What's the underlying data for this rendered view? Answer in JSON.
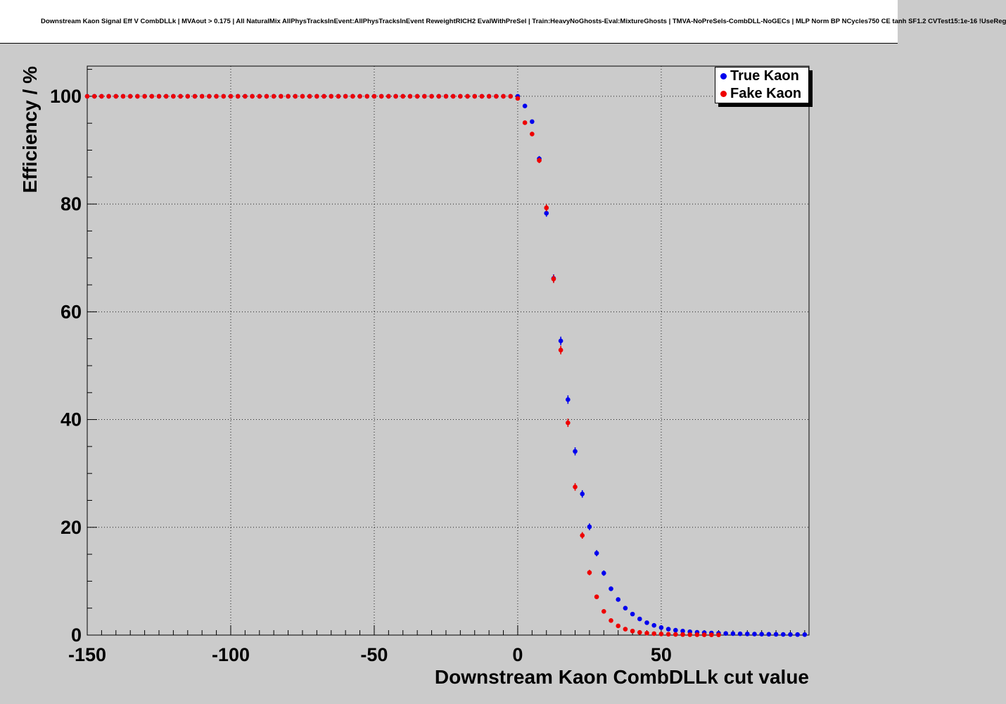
{
  "title": "Downstream Kaon Signal Eff V CombDLLk | MVAout > 0.175 | All NaturalMix AllPhysTracksInEvent:AllPhysTracksInEvent ReweightRICH2 EvalWithPreSel | Train:HeavyNoGhosts-Eval:MixtureGhosts | TMVA-NoPreSels-CombDLL-NoGECs | MLP Norm BP NCycles750 CE tanh SF1.2 CVTest15:1e-16 !UseReg",
  "colors": {
    "canvas_bg": "#cbcbcb",
    "plot_bg": "#ffffff",
    "true_kaon": "#0000ee",
    "fake_kaon": "#ee0000"
  },
  "chart_data": {
    "type": "scatter",
    "title": "Downstream Kaon Signal Eff V CombDLLk",
    "xlabel": "Downstream Kaon CombDLLk cut value",
    "ylabel": "Efficiency / %",
    "xlim": [
      -150,
      101.5
    ],
    "ylim": [
      0,
      105.6
    ],
    "xticks": [
      -150,
      -100,
      -50,
      0,
      50
    ],
    "xtick_labels": [
      "-150",
      "-100",
      "-50",
      "0",
      "50"
    ],
    "yticks": [
      0,
      20,
      40,
      60,
      80,
      100
    ],
    "ytick_labels": [
      "0",
      "20",
      "40",
      "60",
      "80",
      "100"
    ],
    "grid": true,
    "error_bar_sample_n": 4000,
    "legend": {
      "position": "top-right",
      "entries": [
        {
          "label": "True Kaon",
          "color": "#0000ee"
        },
        {
          "label": "Fake Kaon",
          "color": "#ee0000"
        }
      ]
    },
    "series": [
      {
        "name": "True Kaon",
        "color": "#0000ee",
        "x": [
          -150,
          -147.5,
          -145,
          -142.5,
          -140,
          -137.5,
          -135,
          -132.5,
          -130,
          -127.5,
          -125,
          -122.5,
          -120,
          -117.5,
          -115,
          -112.5,
          -110,
          -107.5,
          -105,
          -102.5,
          -100,
          -97.5,
          -95,
          -92.5,
          -90,
          -87.5,
          -85,
          -82.5,
          -80,
          -77.5,
          -75,
          -72.5,
          -70,
          -67.5,
          -65,
          -62.5,
          -60,
          -57.5,
          -55,
          -52.5,
          -50,
          -47.5,
          -45,
          -42.5,
          -40,
          -37.5,
          -35,
          -32.5,
          -30,
          -27.5,
          -25,
          -22.5,
          -20,
          -17.5,
          -15,
          -12.5,
          -10,
          -7.5,
          -5,
          -2.5,
          0,
          2.5,
          5,
          7.5,
          10,
          12.5,
          15,
          17.5,
          20,
          22.5,
          25,
          27.5,
          30,
          32.5,
          35,
          37.5,
          40,
          42.5,
          45,
          47.5,
          50,
          52.5,
          55,
          57.5,
          60,
          62.5,
          65,
          67.5,
          70,
          72.5,
          75,
          77.5,
          80,
          82.5,
          85,
          87.5,
          90,
          92.5,
          95,
          97.5,
          100
        ],
        "y": [
          100,
          100,
          100,
          100,
          100,
          100,
          100,
          100,
          100,
          100,
          100,
          100,
          100,
          100,
          100,
          100,
          100,
          100,
          100,
          100,
          100,
          100,
          100,
          100,
          100,
          100,
          100,
          100,
          100,
          100,
          100,
          100,
          100,
          100,
          100,
          100,
          100,
          100,
          100,
          100,
          100,
          100,
          100,
          100,
          100,
          100,
          100,
          100,
          100,
          100,
          100,
          100,
          100,
          100,
          100,
          100,
          100,
          100,
          100,
          100,
          100,
          98.2,
          95.3,
          88.4,
          78.3,
          66.2,
          54.6,
          43.7,
          34.1,
          26.2,
          20.1,
          15.2,
          11.5,
          8.6,
          6.6,
          5.0,
          3.9,
          3.0,
          2.3,
          1.8,
          1.4,
          1.1,
          0.9,
          0.75,
          0.62,
          0.52,
          0.45,
          0.39,
          0.34,
          0.3,
          0.27,
          0.24,
          0.21,
          0.19,
          0.17,
          0.15,
          0.14,
          0.12,
          0.11,
          0.1,
          0.09
        ]
      },
      {
        "name": "Fake Kaon",
        "color": "#ee0000",
        "x": [
          -150,
          -147.5,
          -145,
          -142.5,
          -140,
          -137.5,
          -135,
          -132.5,
          -130,
          -127.5,
          -125,
          -122.5,
          -120,
          -117.5,
          -115,
          -112.5,
          -110,
          -107.5,
          -105,
          -102.5,
          -100,
          -97.5,
          -95,
          -92.5,
          -90,
          -87.5,
          -85,
          -82.5,
          -80,
          -77.5,
          -75,
          -72.5,
          -70,
          -67.5,
          -65,
          -62.5,
          -60,
          -57.5,
          -55,
          -52.5,
          -50,
          -47.5,
          -45,
          -42.5,
          -40,
          -37.5,
          -35,
          -32.5,
          -30,
          -27.5,
          -25,
          -22.5,
          -20,
          -17.5,
          -15,
          -12.5,
          -10,
          -7.5,
          -5,
          -2.5,
          0,
          2.5,
          5,
          7.5,
          10,
          12.5,
          15,
          17.5,
          20,
          22.5,
          25,
          27.5,
          30,
          32.5,
          35,
          37.5,
          40,
          42.5,
          45,
          47.5,
          50,
          52.5,
          55,
          57.5,
          60,
          62.5,
          65,
          67.5,
          70
        ],
        "y": [
          100,
          100,
          100,
          100,
          100,
          100,
          100,
          100,
          100,
          100,
          100,
          100,
          100,
          100,
          100,
          100,
          100,
          100,
          100,
          100,
          100,
          100,
          100,
          100,
          100,
          100,
          100,
          100,
          100,
          100,
          100,
          100,
          100,
          100,
          100,
          100,
          100,
          100,
          100,
          100,
          100,
          100,
          100,
          100,
          100,
          100,
          100,
          100,
          100,
          100,
          100,
          100,
          100,
          100,
          100,
          100,
          100,
          100,
          100,
          100,
          99.6,
          95.1,
          93.0,
          88.1,
          79.3,
          66.1,
          52.9,
          39.4,
          27.5,
          18.5,
          11.6,
          7.1,
          4.4,
          2.7,
          1.7,
          1.1,
          0.75,
          0.5,
          0.36,
          0.27,
          0.2,
          0.16,
          0.12,
          0.1,
          0.08,
          0.07,
          0.06,
          0.05,
          0.05
        ]
      }
    ]
  }
}
